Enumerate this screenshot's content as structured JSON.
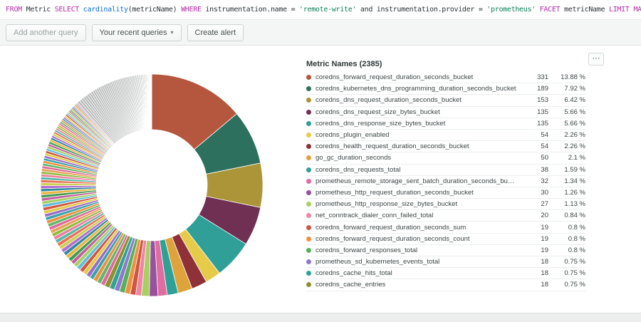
{
  "query": {
    "tokens": [
      {
        "text": "FROM",
        "type": "kw"
      },
      {
        "text": "Metric",
        "type": "plain"
      },
      {
        "text": "SELECT",
        "type": "kw"
      },
      {
        "text": "cardinality",
        "type": "fn",
        "glue": true
      },
      {
        "text": "(metricName)",
        "type": "plain"
      },
      {
        "text": "WHERE",
        "type": "kw"
      },
      {
        "text": "instrumentation.name",
        "type": "plain"
      },
      {
        "text": "=",
        "type": "plain"
      },
      {
        "text": "'remote-write'",
        "type": "str"
      },
      {
        "text": "and",
        "type": "plain"
      },
      {
        "text": "instrumentation.provider",
        "type": "plain"
      },
      {
        "text": "=",
        "type": "plain"
      },
      {
        "text": "'prometheus'",
        "type": "str"
      },
      {
        "text": "FACET",
        "type": "kw"
      },
      {
        "text": "metricName",
        "type": "plain"
      },
      {
        "text": "LIMIT",
        "type": "kw"
      },
      {
        "text": "MAX",
        "type": "kw"
      }
    ]
  },
  "toolbar": {
    "add_query_label": "Add another query",
    "recent_queries_label": "Your recent queries",
    "recent_queries_caret": "▾",
    "create_alert_label": "Create alert"
  },
  "card": {
    "menu_icon": "⋯"
  },
  "chart_data": {
    "type": "pie",
    "title": "Metric Names (2385)",
    "total": 2385,
    "facet": "metricName",
    "legend_position": "right",
    "columns": [
      "metric",
      "cardinality",
      "percent"
    ],
    "series": [
      {
        "name": "coredns_forward_request_duration_seconds_bucket",
        "value": 331,
        "pct": "13.88 %",
        "color": "#b5563e"
      },
      {
        "name": "coredns_kubernetes_dns_programming_duration_seconds_bucket",
        "value": 189,
        "pct": "7.92 %",
        "color": "#2e705e"
      },
      {
        "name": "coredns_dns_request_duration_seconds_bucket",
        "value": 153,
        "pct": "6.42 %",
        "color": "#ab9538"
      },
      {
        "name": "coredns_dns_request_size_bytes_bucket",
        "value": 135,
        "pct": "5.66 %",
        "color": "#6f3053"
      },
      {
        "name": "coredns_dns_response_size_bytes_bucket",
        "value": 135,
        "pct": "5.66 %",
        "color": "#2f9f97"
      },
      {
        "name": "coredns_plugin_enabled",
        "value": 54,
        "pct": "2.26 %",
        "color": "#e6cb48"
      },
      {
        "name": "coredns_health_request_duration_seconds_bucket",
        "value": 54,
        "pct": "2.26 %",
        "color": "#8f3138"
      },
      {
        "name": "go_gc_duration_seconds",
        "value": 50,
        "pct": "2.1 %",
        "color": "#dfa33c"
      },
      {
        "name": "coredns_dns_requests_total",
        "value": 38,
        "pct": "1.59 %",
        "color": "#2fa095"
      },
      {
        "name": "prometheus_remote_storage_sent_batch_duration_seconds_bucket",
        "value": 32,
        "pct": "1.34 %",
        "color": "#e06d9f"
      },
      {
        "name": "prometheus_http_request_duration_seconds_bucket",
        "value": 30,
        "pct": "1.26 %",
        "color": "#96519f"
      },
      {
        "name": "prometheus_http_response_size_bytes_bucket",
        "value": 27,
        "pct": "1.13 %",
        "color": "#a8cf60"
      },
      {
        "name": "net_conntrack_dialer_conn_failed_total",
        "value": 20,
        "pct": "0.84 %",
        "color": "#ef85a5"
      },
      {
        "name": "coredns_forward_request_duration_seconds_sum",
        "value": 19,
        "pct": "0.8 %",
        "color": "#d0563e"
      },
      {
        "name": "coredns_forward_request_duration_seconds_count",
        "value": 19,
        "pct": "0.8 %",
        "color": "#ee9140"
      },
      {
        "name": "coredns_forward_responses_total",
        "value": 19,
        "pct": "0.8 %",
        "color": "#55b15b"
      },
      {
        "name": "prometheus_sd_kubernetes_events_total",
        "value": 18,
        "pct": "0.75 %",
        "color": "#8f79cb"
      },
      {
        "name": "coredns_cache_hits_total",
        "value": 18,
        "pct": "0.75 %",
        "color": "#30a295"
      },
      {
        "name": "coredns_cache_entries",
        "value": 18,
        "pct": "0.75 %",
        "color": "#8f9030"
      }
    ],
    "others_value": 1026,
    "others_color": "#b9bbbb",
    "tail_palette": [
      "#df6a9e",
      "#5fb868",
      "#ee8f3e",
      "#3aa3ab",
      "#9a6ccb",
      "#e3cb45",
      "#d0563e",
      "#63bedd",
      "#a8cf60",
      "#c45f9e",
      "#3f9e52",
      "#eeb23e",
      "#2f8ba0",
      "#b66cd0",
      "#cbd04f",
      "#ee6f58",
      "#56b8a5",
      "#ef7ea0",
      "#8fbc3f",
      "#e8a058"
    ]
  }
}
